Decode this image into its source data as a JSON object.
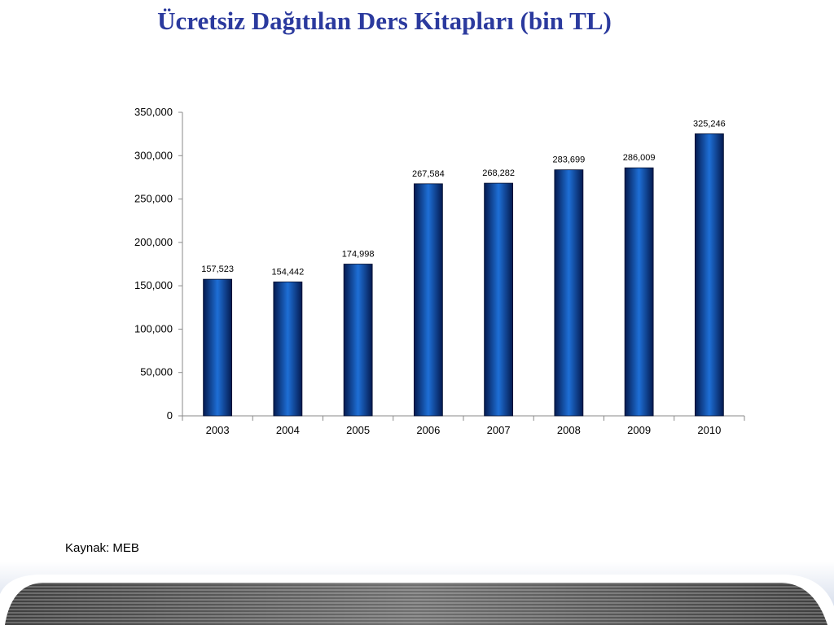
{
  "slide": {
    "title": "Ücretsiz Dağıtılan Ders Kitapları (bin TL)",
    "source": "Kaynak: MEB"
  },
  "colors": {
    "title": "#2b3a9e",
    "bar_light": "#1e6fd6",
    "bar_dark": "#041a4f",
    "axis": "#8a8a8a"
  },
  "chart_data": {
    "type": "bar",
    "categories": [
      "2003",
      "2004",
      "2005",
      "2006",
      "2007",
      "2008",
      "2009",
      "2010"
    ],
    "values": [
      157523,
      154442,
      174998,
      267584,
      268282,
      283699,
      286009,
      325246
    ],
    "data_labels": [
      "157,523",
      "154,442",
      "174,998",
      "267,584",
      "268,282",
      "283,699",
      "286,009",
      "325,246"
    ],
    "yticks": [
      "0",
      "50,000",
      "100,000",
      "150,000",
      "200,000",
      "250,000",
      "300,000",
      "350,000"
    ],
    "ylim": [
      0,
      350000
    ],
    "title": "",
    "xlabel": "",
    "ylabel": "",
    "grid": false,
    "legend": "none"
  }
}
